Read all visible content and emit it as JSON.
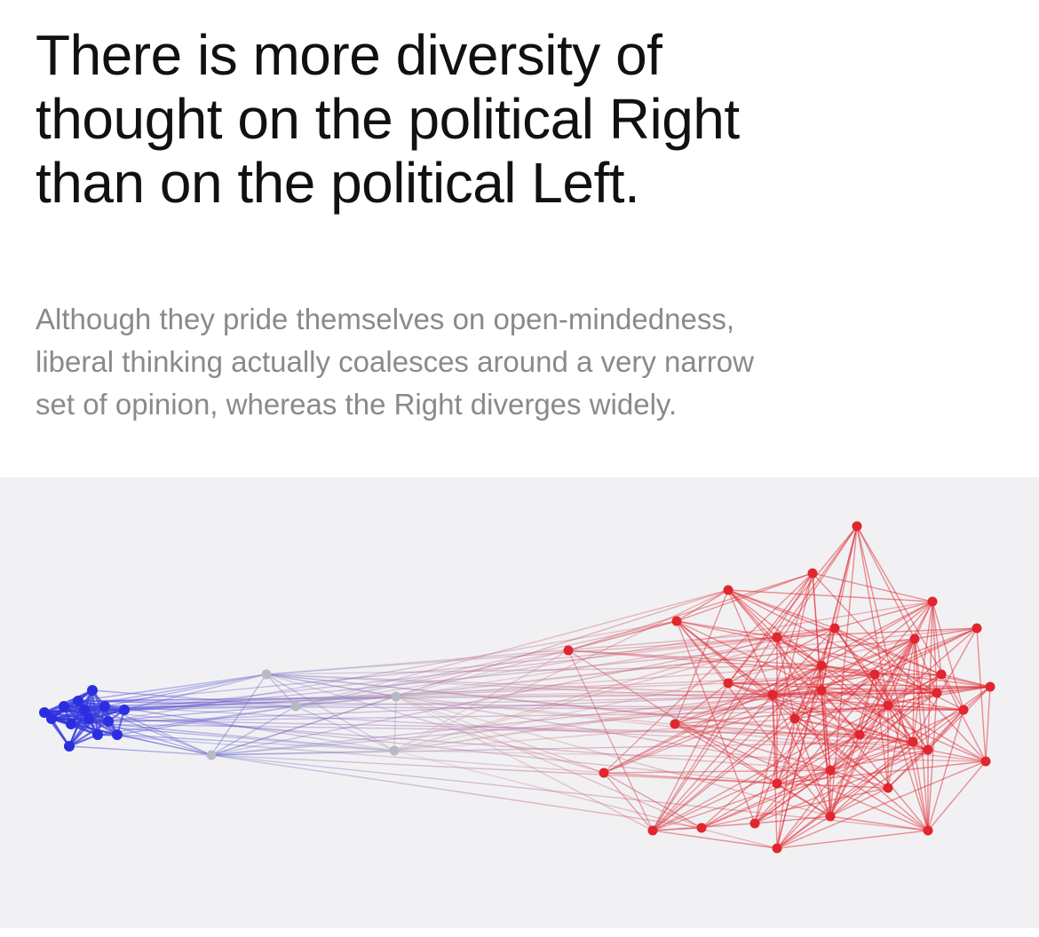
{
  "headline": {
    "line1": "There is more diversity of",
    "line2": "thought on the political Right",
    "line3": "than on the political Left."
  },
  "subhead": {
    "line1": "Although they pride themselves on open-mindedness,",
    "line2": "liberal thinking actually coalesces around a very narrow",
    "line3": "set of opinion, whereas the Right diverges widely."
  },
  "graph": {
    "type": "network",
    "colors": {
      "left": "#2b2ee0",
      "center": "#b9b9c4",
      "right": "#e0262e",
      "background": "#f1f1f3"
    }
  }
}
